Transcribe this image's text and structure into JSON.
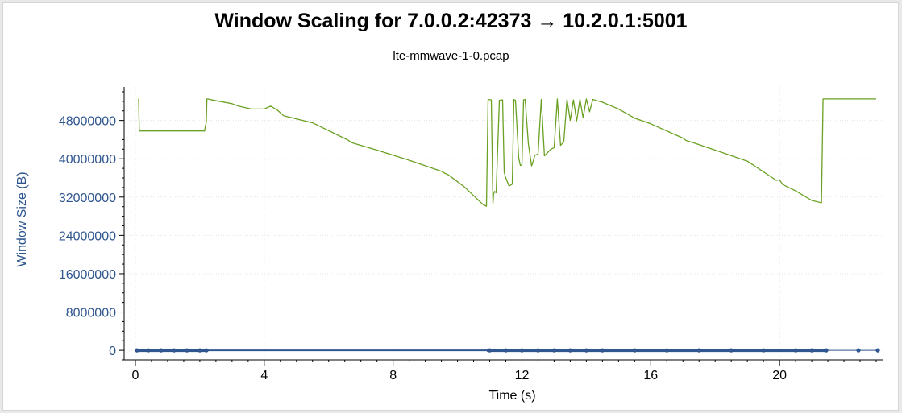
{
  "chart_data": {
    "type": "line",
    "title": "Window Scaling for 7.0.0.2:42373 → 10.2.0.1:5001",
    "subtitle": "lte-mmwave-1-0.pcap",
    "xlabel": "Time (s)",
    "ylabel": "Window Size (B)",
    "xlim": [
      -0.35,
      23.2
    ],
    "ylim": [
      -2000000,
      55000000
    ],
    "xticks": [
      0,
      4,
      8,
      12,
      16,
      20
    ],
    "xtick_labels": [
      "0",
      "4",
      "8",
      "12",
      "16",
      "20"
    ],
    "yticks": [
      0,
      8000000,
      16000000,
      24000000,
      32000000,
      40000000,
      48000000
    ],
    "ytick_labels": [
      "0",
      "8000000",
      "16000000",
      "24000000",
      "32000000",
      "40000000",
      "48000000"
    ],
    "grid": true,
    "colors": {
      "window": "#6aa122",
      "bytes_in_flight": "#2f568f",
      "ytick": "#2f568f",
      "ylabel": "#2f568f"
    },
    "series": [
      {
        "x": [
          0.1,
          0.12,
          0.18,
          0.2,
          0.22,
          2.15,
          2.17,
          2.2,
          2.22,
          2.25,
          2.3,
          2.6,
          3.0,
          3.2,
          3.4,
          3.6,
          3.8,
          4.0,
          4.2,
          4.4,
          4.6,
          5.5,
          6.6,
          6.7,
          6.8,
          7.5,
          8.5,
          9.5,
          9.6,
          9.7,
          10.2,
          10.8,
          10.9,
          10.95,
          11.05,
          11.1,
          11.12,
          11.15,
          11.2,
          11.3,
          11.4,
          11.45,
          11.5,
          11.6,
          11.7,
          11.75,
          11.8,
          11.9,
          11.95,
          12.0,
          12.05,
          12.1,
          12.2,
          12.3,
          12.35,
          12.4,
          12.5,
          12.6,
          12.7,
          12.8,
          12.9,
          13.0,
          13.1,
          13.2,
          13.3,
          13.4,
          13.5,
          13.6,
          13.7,
          13.8,
          13.9,
          14.0,
          14.1,
          14.2,
          14.3,
          14.5,
          15.0,
          15.5,
          16.0,
          17.0,
          17.1,
          17.3,
          18.0,
          19.0,
          19.9,
          20.0,
          20.1,
          20.5,
          21.0,
          21.3,
          21.35,
          21.36,
          22.5,
          23.0
        ],
        "values": [
          52500000,
          45800000,
          45800000,
          45800000,
          45800000,
          45800000,
          46800000,
          47500000,
          52500000,
          52500000,
          52400000,
          52000000,
          51500000,
          51000000,
          50700000,
          50400000,
          50400000,
          50400000,
          51000000,
          50200000,
          49000000,
          47500000,
          43900000,
          43400000,
          43200000,
          41800000,
          39700000,
          37400000,
          37000000,
          36700000,
          34200000,
          30400000,
          30100000,
          52400000,
          52300000,
          30600000,
          32600000,
          33200000,
          32900000,
          52200000,
          52300000,
          37200000,
          36000000,
          34300000,
          34700000,
          52400000,
          52200000,
          40200000,
          38600000,
          38700000,
          52300000,
          52400000,
          43100000,
          38500000,
          39500000,
          40700000,
          41000000,
          52400000,
          40600000,
          41300000,
          42000000,
          42300000,
          52500000,
          42800000,
          43500000,
          52400000,
          48000000,
          52300000,
          47900000,
          52400000,
          48600000,
          52500000,
          49800000,
          52400000,
          52200000,
          51800000,
          50400000,
          48500000,
          47300000,
          44300000,
          43800000,
          43400000,
          41800000,
          39500000,
          35500000,
          35600000,
          34600000,
          33300000,
          31300000,
          30800000,
          52500000,
          52500000,
          52500000,
          52500000
        ]
      },
      {
        "x": [
          0.05,
          0.4,
          0.8,
          1.2,
          1.6,
          2.0,
          2.2,
          11.0,
          11.5,
          12.0,
          12.5,
          13.0,
          13.5,
          14.0,
          14.5,
          15.5,
          16.5,
          17.5,
          18.5,
          19.5,
          20.5,
          21.0,
          21.45,
          22.45,
          23.05
        ],
        "values": [
          0,
          0,
          0,
          0,
          0,
          0,
          0,
          0,
          0,
          0,
          0,
          0,
          0,
          0,
          0,
          0,
          0,
          0,
          0,
          0,
          0,
          0,
          0,
          0,
          0
        ]
      }
    ]
  }
}
